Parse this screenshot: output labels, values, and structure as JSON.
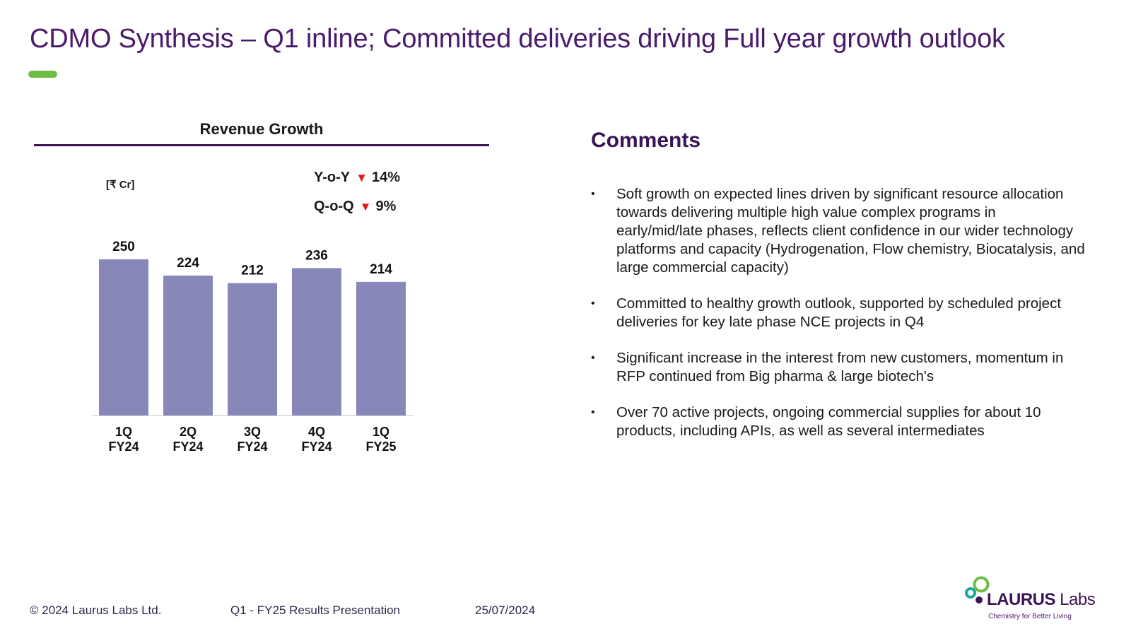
{
  "slide": {
    "title": "CDMO Synthesis – Q1 inline; Committed deliveries driving Full year growth outlook"
  },
  "colors": {
    "title": "#4a1a6b",
    "accent_bar": "#6cbd45",
    "rule": "#3b1457",
    "bar": "#8788b9",
    "down_arrow": "#e01b1b"
  },
  "chart_heading": "Revenue Growth",
  "unit_label": "[₹ Cr]",
  "metrics": {
    "yoy": {
      "label": "Y-o-Y",
      "direction": "▼",
      "value": "14%"
    },
    "qoq": {
      "label": "Q-o-Q",
      "direction": "▼",
      "value": "9%"
    }
  },
  "chart_data": {
    "type": "bar",
    "categories": [
      [
        "1Q",
        "FY24"
      ],
      [
        "2Q",
        "FY24"
      ],
      [
        "3Q",
        "FY24"
      ],
      [
        "4Q",
        "FY24"
      ],
      [
        "1Q",
        "FY25"
      ]
    ],
    "values": [
      250,
      224,
      212,
      236,
      214
    ],
    "value_labels": [
      "250",
      "224",
      "212",
      "236",
      "214"
    ],
    "title": "Revenue Growth",
    "ylabel": "[₹ Cr]",
    "grid": false,
    "y_axis_visible": false
  },
  "comments": {
    "heading": "Comments",
    "bullet_icon": "•",
    "items": [
      "Soft growth on expected lines driven by significant resource allocation towards delivering multiple high value complex programs in early/mid/late phases, reflects client confidence in our wider technology platforms and capacity (Hydrogenation, Flow chemistry, Biocatalysis, and large commercial capacity)",
      "Committed to healthy growth outlook, supported by scheduled project deliveries for key late phase NCE projects in Q4",
      "Significant increase in the interest from new customers, momentum in RFP continued from Big pharma & large biotech's",
      "Over 70 active projects, ongoing commercial supplies for about 10 products, including APIs, as well as several intermediates"
    ]
  },
  "footer": {
    "copyright": "© 2024  Laurus Labs Ltd.",
    "presentation": "Q1 - FY25  Results Presentation",
    "date": "25/07/2024"
  },
  "logo": {
    "brand_bold": "LAURUS",
    "brand_light": "Labs",
    "tagline": "Chemistry for Better Living"
  }
}
